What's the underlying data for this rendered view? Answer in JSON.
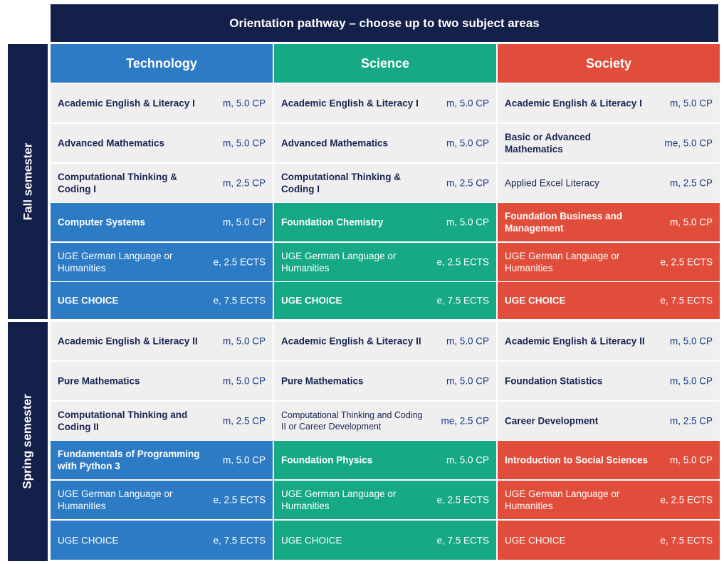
{
  "title": "Orientation pathway – choose up to two subject areas",
  "semesters": [
    "Fall semester",
    "Spring semester"
  ],
  "columns": [
    {
      "header": "Technology",
      "color": "#2d7bc5",
      "fall": [
        {
          "name": "Academic English & Literacy I",
          "credits": "m, 5.0 CP"
        },
        {
          "name": "Advanced Mathematics",
          "credits": "m, 5.0 CP"
        },
        {
          "name": "Computational Thinking & Coding I",
          "credits": "m, 2.5 CP"
        },
        {
          "name": "Computer Systems",
          "credits": "m, 5.0 CP"
        },
        {
          "name": "UGE German Language or Humanities",
          "credits": "e, 2.5 ECTS"
        },
        {
          "name": "UGE CHOICE",
          "credits": "e, 7.5 ECTS"
        }
      ],
      "spring": [
        {
          "name": "Academic English & Literacy II",
          "credits": "m, 5.0 CP"
        },
        {
          "name": "Pure Mathematics",
          "credits": "m, 5.0 CP"
        },
        {
          "name": "Computational Thinking and Coding II",
          "credits": "m, 2.5 CP"
        },
        {
          "name": "Fundamentals of Programming with Python 3",
          "credits": "m, 5.0 CP"
        },
        {
          "name": "UGE German Language or Humanities",
          "credits": "e, 2.5 ECTS"
        },
        {
          "name": "UGE CHOICE",
          "credits": "e, 7.5 ECTS"
        }
      ]
    },
    {
      "header": "Science",
      "color": "#17a985",
      "fall": [
        {
          "name": "Academic English & Literacy I",
          "credits": "m, 5.0 CP"
        },
        {
          "name": "Advanced Mathematics",
          "credits": "m, 5.0 CP"
        },
        {
          "name": "Computational Thinking & Coding I",
          "credits": "m, 2.5 CP"
        },
        {
          "name": "Foundation Chemistry",
          "credits": "m, 5.0 CP"
        },
        {
          "name": "UGE German Language or Humanities",
          "credits": "e, 2.5 ECTS"
        },
        {
          "name": "UGE CHOICE",
          "credits": "e, 7.5 ECTS"
        }
      ],
      "spring": [
        {
          "name": "Academic English & Literacy II",
          "credits": "m, 5.0 CP"
        },
        {
          "name": "Pure Mathematics",
          "credits": "m, 5.0 CP"
        },
        {
          "name": "Computational Thinking and Coding II or Career Development",
          "credits": "me, 2.5 CP"
        },
        {
          "name": "Foundation Physics",
          "credits": "m, 5.0 CP"
        },
        {
          "name": "UGE German Language or Humanities",
          "credits": "e, 2.5 ECTS"
        },
        {
          "name": "UGE CHOICE",
          "credits": "e, 7.5 ECTS"
        }
      ]
    },
    {
      "header": "Society",
      "color": "#e04e3b",
      "fall": [
        {
          "name": "Academic English & Literacy I",
          "credits": "m, 5.0 CP"
        },
        {
          "name": "Basic or Advanced Mathematics",
          "credits": "me, 5.0 CP"
        },
        {
          "name": "Applied Excel Literacy",
          "credits": "m, 2.5 CP"
        },
        {
          "name": "Foundation Business and Management",
          "credits": "m, 5.0 CP"
        },
        {
          "name": "UGE German Language or Humanities",
          "credits": "e, 2.5 ECTS"
        },
        {
          "name": "UGE CHOICE",
          "credits": "e, 7.5 ECTS"
        }
      ],
      "spring": [
        {
          "name": "Academic English & Literacy II",
          "credits": "m, 5.0 CP"
        },
        {
          "name": "Foundation Statistics",
          "credits": "m, 5.0 CP"
        },
        {
          "name": "Career Development",
          "credits": "m, 2.5 CP"
        },
        {
          "name": "Introduction to Social Sciences",
          "credits": "m, 5.0 CP"
        },
        {
          "name": "UGE German Language or Humanities",
          "credits": "e, 2.5 ECTS"
        },
        {
          "name": "UGE CHOICE",
          "credits": "e, 7.5 ECTS"
        }
      ]
    }
  ]
}
